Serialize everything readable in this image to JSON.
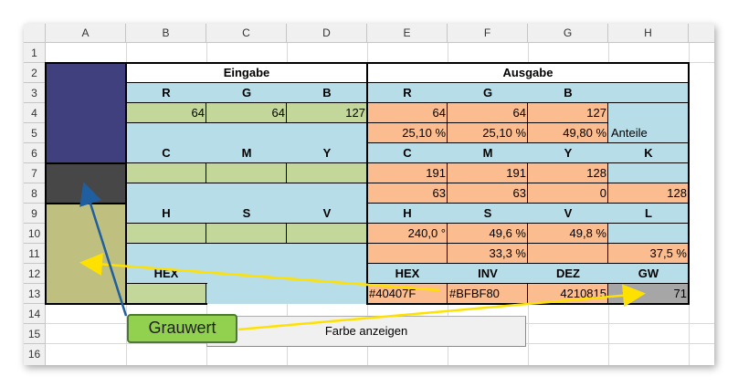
{
  "column_headers": [
    "A",
    "B",
    "C",
    "D",
    "E",
    "F",
    "G",
    "H"
  ],
  "row_headers": [
    "1",
    "2",
    "3",
    "4",
    "5",
    "6",
    "7",
    "8",
    "9",
    "10",
    "11",
    "12",
    "13",
    "14",
    "15",
    "16"
  ],
  "eingabe": {
    "title": "Eingabe",
    "rgb_labels": [
      "R",
      "G",
      "B"
    ],
    "rgb_values": [
      "64",
      "64",
      "127"
    ],
    "cmy_labels": [
      "C",
      "M",
      "Y"
    ],
    "hsv_labels": [
      "H",
      "S",
      "V"
    ],
    "hex_label": "HEX"
  },
  "ausgabe": {
    "title": "Ausgabe",
    "rgb_labels": [
      "R",
      "G",
      "B"
    ],
    "rgb_values": [
      "64",
      "64",
      "127"
    ],
    "rgb_percent": [
      "25,10 %",
      "25,10 %",
      "49,80 %"
    ],
    "anteile_label": "Anteile",
    "cmyk_labels": [
      "C",
      "M",
      "Y",
      "K"
    ],
    "cmy_values": [
      "191",
      "191",
      "128"
    ],
    "cmyk_values": [
      "63",
      "63",
      "0",
      "128"
    ],
    "hsl_labels": [
      "H",
      "S",
      "V",
      "L"
    ],
    "hsv_values": [
      "240,0 °",
      "49,6 %",
      "49,8 %"
    ],
    "hsl_values": [
      "33,3 %",
      "37,5 %"
    ],
    "hex_labels": [
      "HEX",
      "INV",
      "DEZ",
      "GW"
    ],
    "hex_values": [
      "#40407F",
      "#BFBF80",
      "4210815",
      "71"
    ]
  },
  "swatches": {
    "color": "#40407f",
    "gray": "#474747",
    "inverse": "#bfbf80"
  },
  "button_label": "Farbe anzeigen",
  "callout_label": "Grauwert",
  "colors": {
    "header_blue": "#b7dde8",
    "input_green": "#c4d79b",
    "output_orange": "#fbbd8f",
    "gw_gray": "#a6a6a6",
    "arrow_yellow": "#ffe100",
    "arrow_blue": "#1f5f9f",
    "callout_green": "#92d050"
  }
}
